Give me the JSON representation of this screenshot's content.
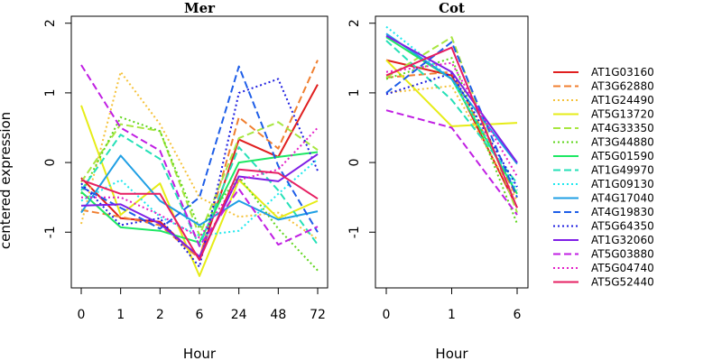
{
  "figure": {
    "ylabel": "centered expression"
  },
  "chart_data": [
    {
      "type": "line",
      "title": "Mer",
      "xlabel": "Hour",
      "ylabel": "centered expression",
      "categories": [
        "0",
        "1",
        "2",
        "6",
        "24",
        "48",
        "72"
      ],
      "ylim": [
        -1.8,
        2.1
      ],
      "yticks": [
        -1,
        0,
        1,
        2
      ],
      "grid": false,
      "series": [
        {
          "name": "AT1G03160",
          "values": [
            -0.22,
            -0.8,
            -0.85,
            -1.37,
            0.33,
            0.08,
            1.12
          ]
        },
        {
          "name": "AT3G62880",
          "values": [
            -0.68,
            -0.78,
            -0.9,
            -1.38,
            0.65,
            0.2,
            1.47
          ]
        },
        {
          "name": "AT1G24490",
          "values": [
            -0.88,
            1.3,
            0.55,
            -0.5,
            -0.78,
            -0.72,
            -1.1
          ]
        },
        {
          "name": "AT5G13720",
          "values": [
            0.82,
            -0.75,
            -0.3,
            -1.63,
            -0.25,
            -0.8,
            -0.55
          ]
        },
        {
          "name": "AT4G33350",
          "values": [
            -0.28,
            0.55,
            0.45,
            -1.05,
            0.35,
            0.58,
            0.18
          ]
        },
        {
          "name": "AT3G44880",
          "values": [
            -0.45,
            0.65,
            0.45,
            -0.95,
            -0.2,
            -0.95,
            -1.55
          ]
        },
        {
          "name": "AT5G01590",
          "values": [
            -0.42,
            -0.93,
            -0.98,
            -1.15,
            0.0,
            0.08,
            0.15
          ]
        },
        {
          "name": "AT1G49970",
          "values": [
            -0.4,
            0.4,
            0.05,
            -1.2,
            0.22,
            -0.4,
            -1.18
          ]
        },
        {
          "name": "AT1G09130",
          "values": [
            -0.55,
            -0.25,
            -0.78,
            -1.05,
            -0.98,
            -0.45,
            0.05
          ]
        },
        {
          "name": "AT4G17040",
          "values": [
            -0.72,
            0.1,
            -0.55,
            -0.9,
            -0.55,
            -0.82,
            -0.7
          ]
        },
        {
          "name": "AT4G19830",
          "values": [
            -0.35,
            -0.65,
            -0.95,
            -0.5,
            1.38,
            -0.05,
            -1.0
          ]
        },
        {
          "name": "AT5G64350",
          "values": [
            -0.3,
            -0.9,
            -0.8,
            -1.5,
            1.0,
            1.2,
            -0.12
          ]
        },
        {
          "name": "AT1G32060",
          "values": [
            -0.62,
            -0.6,
            -0.88,
            -1.35,
            -0.2,
            -0.27,
            0.12
          ]
        },
        {
          "name": "AT5G03880",
          "values": [
            1.4,
            0.5,
            0.17,
            -1.2,
            -0.38,
            -1.18,
            -0.92
          ]
        },
        {
          "name": "AT5G04740",
          "values": [
            -0.5,
            -0.5,
            -0.75,
            -1.08,
            -0.25,
            -0.1,
            0.5
          ]
        },
        {
          "name": "AT5G52440",
          "values": [
            -0.25,
            -0.45,
            -0.45,
            -1.4,
            -0.1,
            -0.15,
            -0.52
          ]
        }
      ]
    },
    {
      "type": "line",
      "title": "Cot",
      "xlabel": "Hour",
      "ylabel": "",
      "categories": [
        "0",
        "1",
        "6"
      ],
      "ylim": [
        -1.8,
        2.1
      ],
      "yticks": [
        -1,
        0,
        1,
        2
      ],
      "grid": false,
      "series": [
        {
          "name": "AT1G03160",
          "values": [
            1.47,
            1.25,
            -0.65
          ]
        },
        {
          "name": "AT3G62880",
          "values": [
            1.22,
            1.3,
            -0.5
          ]
        },
        {
          "name": "AT1G24490",
          "values": [
            1.0,
            1.1,
            -0.55
          ]
        },
        {
          "name": "AT5G13720",
          "values": [
            1.47,
            0.52,
            0.57
          ]
        },
        {
          "name": "AT4G33350",
          "values": [
            1.22,
            1.8,
            -0.72
          ]
        },
        {
          "name": "AT3G44880",
          "values": [
            1.2,
            1.5,
            -0.88
          ]
        },
        {
          "name": "AT5G01590",
          "values": [
            1.8,
            1.2,
            -0.45
          ]
        },
        {
          "name": "AT1G49970",
          "values": [
            1.75,
            0.9,
            -0.3
          ]
        },
        {
          "name": "AT1G09130",
          "values": [
            1.95,
            1.2,
            -0.4
          ]
        },
        {
          "name": "AT4G17040",
          "values": [
            1.85,
            1.2,
            -0.02
          ]
        },
        {
          "name": "AT4G19830",
          "values": [
            1.0,
            1.73,
            -0.5
          ]
        },
        {
          "name": "AT5G64350",
          "values": [
            0.98,
            1.28,
            -0.35
          ]
        },
        {
          "name": "AT1G32060",
          "values": [
            1.82,
            1.3,
            0.0
          ]
        },
        {
          "name": "AT5G03880",
          "values": [
            0.75,
            0.5,
            -0.75
          ]
        },
        {
          "name": "AT5G04740",
          "values": [
            1.3,
            1.43,
            -0.2
          ]
        },
        {
          "name": "AT5G52440",
          "values": [
            1.25,
            1.65,
            -0.65
          ]
        }
      ]
    }
  ],
  "legend": {
    "placement": "right",
    "entries": [
      {
        "name": "AT1G03160",
        "color": "#e01f1f",
        "dash": "solid"
      },
      {
        "name": "AT3G62880",
        "color": "#f07f30",
        "dash": "dashed"
      },
      {
        "name": "AT1G24490",
        "color": "#f5c23a",
        "dash": "dotted"
      },
      {
        "name": "AT5G13720",
        "color": "#e6ec17",
        "dash": "solid"
      },
      {
        "name": "AT4G33350",
        "color": "#a8e640",
        "dash": "dashed"
      },
      {
        "name": "AT3G44880",
        "color": "#5fd61c",
        "dash": "dotted"
      },
      {
        "name": "AT5G01590",
        "color": "#1ee864",
        "dash": "solid"
      },
      {
        "name": "AT1G49970",
        "color": "#25e0b7",
        "dash": "dashed"
      },
      {
        "name": "AT1G09130",
        "color": "#1ee8ee",
        "dash": "dotted"
      },
      {
        "name": "AT4G17040",
        "color": "#1f9fe4",
        "dash": "solid"
      },
      {
        "name": "AT4G19830",
        "color": "#1e5ee8",
        "dash": "dashed"
      },
      {
        "name": "AT5G64350",
        "color": "#1f1fe0",
        "dash": "dotted"
      },
      {
        "name": "AT1G32060",
        "color": "#7f1fe6",
        "dash": "solid"
      },
      {
        "name": "AT5G03880",
        "color": "#c01fe3",
        "dash": "dashed"
      },
      {
        "name": "AT5G04740",
        "color": "#e31fc7",
        "dash": "dotted"
      },
      {
        "name": "AT5G52440",
        "color": "#e61f62",
        "dash": "solid"
      }
    ]
  }
}
